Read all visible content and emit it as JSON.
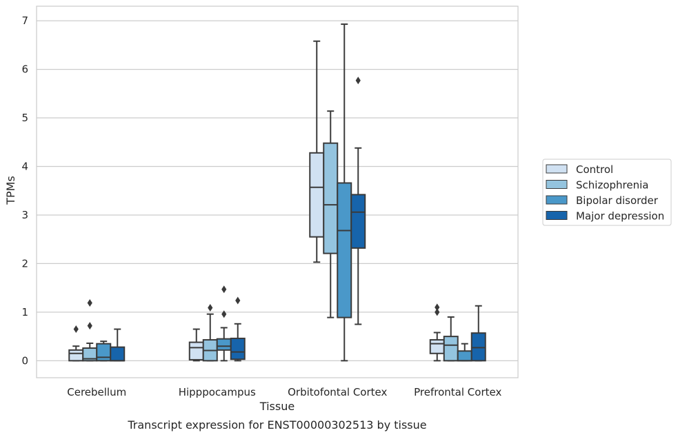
{
  "chart_data": {
    "type": "box",
    "title": "",
    "caption": "Transcript expression for ENST00000302513 by tissue",
    "xlabel": "Tissue",
    "ylabel": "TPMs",
    "ylim": [
      -0.35,
      7.3
    ],
    "yticks": [
      0,
      1,
      2,
      3,
      4,
      5,
      6,
      7
    ],
    "grid": true,
    "legend_position": "right",
    "categories": [
      "Cerebellum",
      "Hipppocampus",
      "Orbitofontal Cortex",
      "Prefrontal Cortex"
    ],
    "series": [
      {
        "name": "Control",
        "color": "#d0e1f2",
        "boxes": [
          {
            "whislo": 0.0,
            "q1": 0.0,
            "med": 0.15,
            "q3": 0.22,
            "whishi": 0.3,
            "fliers": [
              0.65
            ]
          },
          {
            "whislo": 0.0,
            "q1": 0.02,
            "med": 0.27,
            "q3": 0.38,
            "whishi": 0.65,
            "fliers": []
          },
          {
            "whislo": 2.03,
            "q1": 2.55,
            "med": 3.57,
            "q3": 4.28,
            "whishi": 6.58,
            "fliers": []
          },
          {
            "whislo": 0.0,
            "q1": 0.15,
            "med": 0.35,
            "q3": 0.43,
            "whishi": 0.58,
            "fliers": [
              1.0,
              1.1
            ]
          }
        ]
      },
      {
        "name": "Schizophrenia",
        "color": "#94c4df",
        "boxes": [
          {
            "whislo": 0.0,
            "q1": 0.0,
            "med": 0.04,
            "q3": 0.26,
            "whishi": 0.36,
            "fliers": [
              0.72,
              1.19
            ]
          },
          {
            "whislo": 0.0,
            "q1": 0.0,
            "med": 0.21,
            "q3": 0.43,
            "whishi": 0.96,
            "fliers": [
              1.09
            ]
          },
          {
            "whislo": 0.89,
            "q1": 2.21,
            "med": 3.21,
            "q3": 4.48,
            "whishi": 5.14,
            "fliers": []
          },
          {
            "whislo": 0.0,
            "q1": 0.0,
            "med": 0.32,
            "q3": 0.5,
            "whishi": 0.9,
            "fliers": []
          }
        ]
      },
      {
        "name": "Bipolar disorder",
        "color": "#4a98c9",
        "boxes": [
          {
            "whislo": 0.0,
            "q1": 0.0,
            "med": 0.07,
            "q3": 0.35,
            "whishi": 0.4,
            "fliers": []
          },
          {
            "whislo": 0.0,
            "q1": 0.22,
            "med": 0.3,
            "q3": 0.45,
            "whishi": 0.68,
            "fliers": [
              0.96,
              1.47
            ]
          },
          {
            "whislo": 0.0,
            "q1": 0.89,
            "med": 2.68,
            "q3": 3.66,
            "whishi": 6.93,
            "fliers": []
          },
          {
            "whislo": 0.0,
            "q1": 0.0,
            "med": 0.0,
            "q3": 0.2,
            "whishi": 0.35,
            "fliers": []
          }
        ]
      },
      {
        "name": "Major depression",
        "color": "#1764ab",
        "boxes": [
          {
            "whislo": 0.0,
            "q1": 0.0,
            "med": 0.0,
            "q3": 0.28,
            "whishi": 0.65,
            "fliers": []
          },
          {
            "whislo": 0.0,
            "q1": 0.03,
            "med": 0.18,
            "q3": 0.46,
            "whishi": 0.76,
            "fliers": [
              1.24
            ]
          },
          {
            "whislo": 0.75,
            "q1": 2.32,
            "med": 3.06,
            "q3": 3.42,
            "whishi": 4.38,
            "fliers": [
              5.77
            ]
          },
          {
            "whislo": 0.0,
            "q1": 0.0,
            "med": 0.27,
            "q3": 0.57,
            "whishi": 1.13,
            "fliers": []
          }
        ]
      }
    ]
  }
}
